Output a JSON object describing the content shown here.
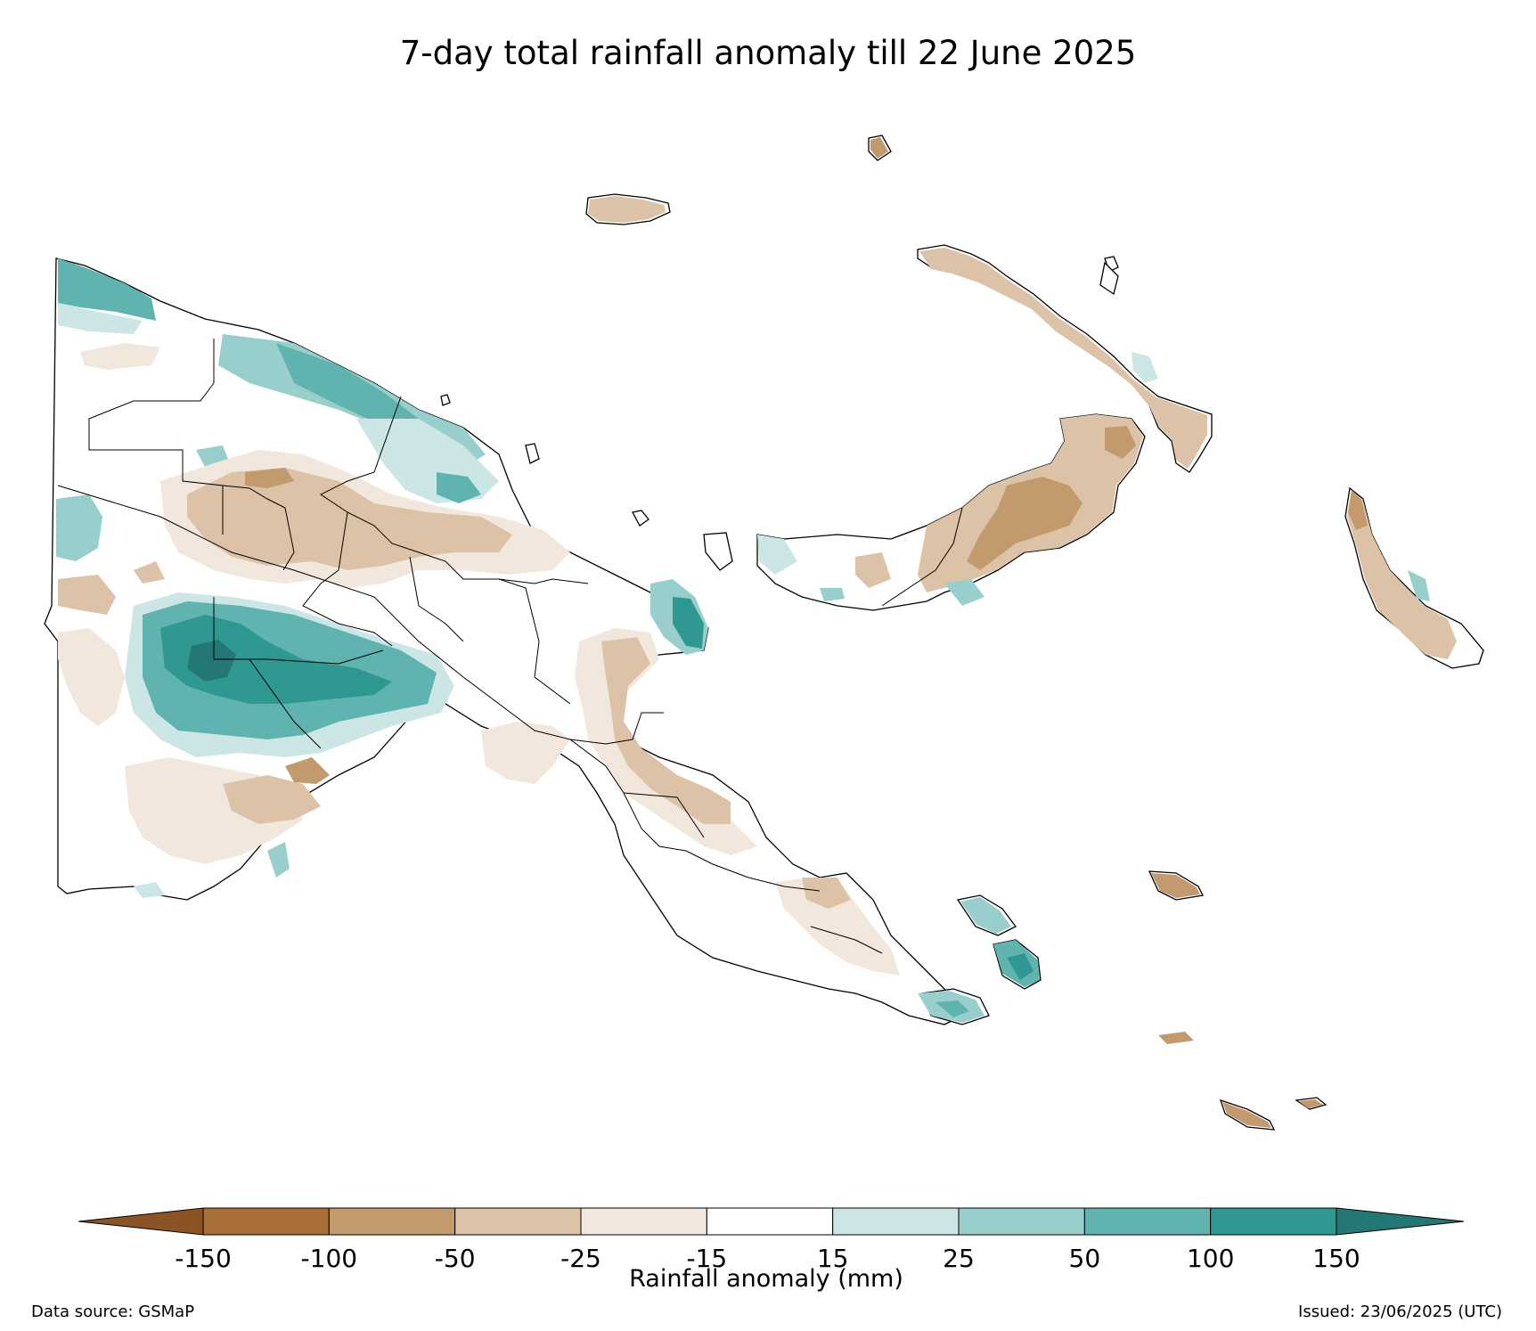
{
  "map": {
    "title": "7-day total rainfall anomaly till 22 June 2025",
    "colorbar": {
      "label": "Rainfall anomaly (mm)",
      "ticks": [
        "-150",
        "-100",
        "-50",
        "-25",
        "-15",
        "15",
        "25",
        "50",
        "100",
        "150"
      ],
      "colors": [
        "#a86f36",
        "#c39a6d",
        "#dcc3a7",
        "#f2e7dd",
        "#ffffff",
        "#cce6e5",
        "#98cfcd",
        "#60b4b0",
        "#2e9891"
      ],
      "extend_low_color": "#8c5424",
      "extend_high_color": "#237875"
    },
    "footer": {
      "source": "Data source: GSMaP",
      "issued": "Issued: 23/06/2025 (UTC)"
    }
  }
}
